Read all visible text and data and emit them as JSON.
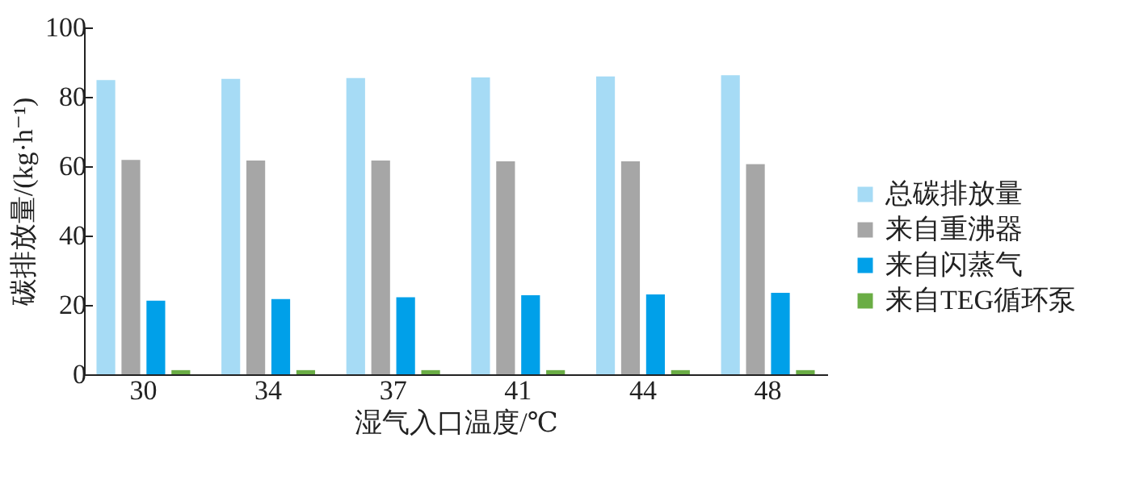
{
  "chart_data": {
    "type": "bar",
    "xlabel": "湿气入口温度/℃",
    "ylabel": "碳排放量/(kg·h⁻¹)",
    "categories": [
      "30",
      "34",
      "37",
      "41",
      "44",
      "48"
    ],
    "series": [
      {
        "name": "总碳排放量",
        "color": "#a6dbf5",
        "values": [
          84.8,
          85.2,
          85.4,
          85.6,
          85.9,
          86.2
        ]
      },
      {
        "name": "来自重沸器",
        "color": "#a6a6a6",
        "values": [
          61.8,
          61.6,
          61.6,
          61.4,
          61.4,
          60.6
        ]
      },
      {
        "name": "来自闪蒸气",
        "color": "#00a0e9",
        "values": [
          21.2,
          21.7,
          22.2,
          22.8,
          23.0,
          23.5
        ]
      },
      {
        "name": "来自TEG循环泵",
        "color": "#6aad45",
        "values": [
          1.2,
          1.2,
          1.2,
          1.2,
          1.2,
          1.2
        ]
      }
    ],
    "ylim": [
      0,
      100
    ],
    "yticks": [
      0,
      20,
      40,
      60,
      80,
      100
    ],
    "grid": false,
    "legend": "right"
  }
}
